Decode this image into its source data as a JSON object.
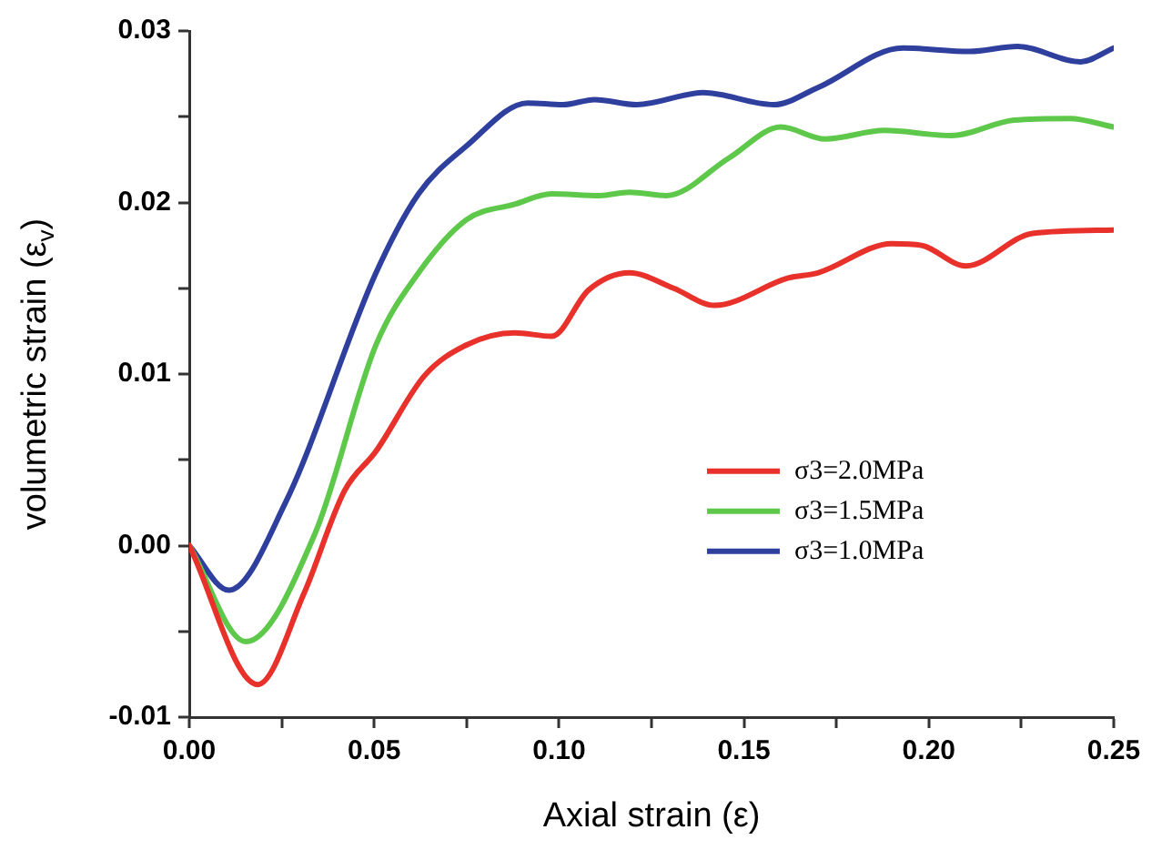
{
  "chart_data": {
    "type": "line",
    "xlabel": "Axial strain (ε)",
    "ylabel": "volumetric strain (ε$_{v}$)",
    "xlim": [
      0,
      0.25
    ],
    "ylim": [
      -0.01,
      0.03
    ],
    "xticks": [
      {
        "value": 0,
        "label": "0.00"
      },
      {
        "value": 0.025,
        "label": null
      },
      {
        "value": 0.05,
        "label": "0.05"
      },
      {
        "value": 0.075,
        "label": null
      },
      {
        "value": 0.1,
        "label": "0.10"
      },
      {
        "value": 0.125,
        "label": null
      },
      {
        "value": 0.15,
        "label": "0.15"
      },
      {
        "value": 0.175,
        "label": null
      },
      {
        "value": 0.2,
        "label": "0.20"
      },
      {
        "value": 0.225,
        "label": null
      },
      {
        "value": 0.25,
        "label": "0.25"
      }
    ],
    "yticks": [
      {
        "value": -0.01,
        "label": "-0.01"
      },
      {
        "value": -0.005,
        "label": null
      },
      {
        "value": 0,
        "label": "0.00"
      },
      {
        "value": 0.005,
        "label": null
      },
      {
        "value": 0.01,
        "label": "0.01"
      },
      {
        "value": 0.015,
        "label": null
      },
      {
        "value": 0.02,
        "label": "0.02"
      },
      {
        "value": 0.025,
        "label": null
      },
      {
        "value": 0.03,
        "label": "0.03"
      }
    ],
    "grid": false,
    "legend": "center right",
    "marker": "none",
    "line_style": "solid",
    "series": [
      {
        "name": "σ3=2.0MPa",
        "color": "#e8312a",
        "x": [
          0,
          0.0185,
          0.031,
          0.042,
          0.0505,
          0.0636,
          0.075,
          0.088,
          0.098,
          0.108,
          0.119,
          0.131,
          0.142,
          0.162,
          0.17,
          0.19,
          0.198,
          0.21,
          0.228,
          0.25
        ],
        "values": [
          0,
          -0.0081,
          -0.0028,
          0.0032,
          0.0055,
          0.0099,
          0.0117,
          0.0124,
          0.0122,
          0.0149,
          0.0159,
          0.015,
          0.014,
          0.0156,
          0.0159,
          0.0176,
          0.0175,
          0.0163,
          0.0182,
          0.0184
        ]
      },
      {
        "name": "σ3=1.5MPa",
        "color": "#5ec84a",
        "x": [
          0,
          0.0153,
          0.034,
          0.0505,
          0.062,
          0.075,
          0.088,
          0.098,
          0.111,
          0.119,
          0.129,
          0.146,
          0.16,
          0.172,
          0.188,
          0.206,
          0.223,
          0.238,
          0.25
        ],
        "values": [
          0,
          -0.0056,
          0.0007,
          0.0117,
          0.0159,
          0.019,
          0.0199,
          0.0205,
          0.0204,
          0.0206,
          0.0204,
          0.0226,
          0.0244,
          0.0237,
          0.0242,
          0.0239,
          0.0248,
          0.0249,
          0.0244
        ]
      },
      {
        "name": "σ3=1.0MPa",
        "color": "#2e3f9e",
        "x": [
          0,
          0.0107,
          0.026,
          0.0505,
          0.062,
          0.075,
          0.0915,
          0.101,
          0.1096,
          0.121,
          0.139,
          0.158,
          0.17,
          0.193,
          0.211,
          0.224,
          0.241,
          0.25
        ],
        "values": [
          0,
          -0.0026,
          0.0025,
          0.0159,
          0.0205,
          0.0233,
          0.0258,
          0.0257,
          0.026,
          0.0257,
          0.0264,
          0.0257,
          0.0267,
          0.029,
          0.0288,
          0.0291,
          0.0282,
          0.029
        ]
      }
    ]
  }
}
